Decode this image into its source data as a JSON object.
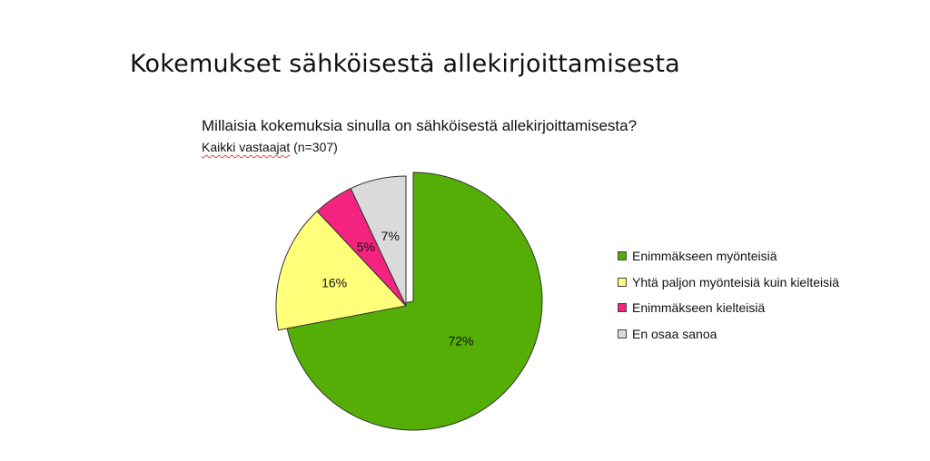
{
  "slide": {
    "title": "Kokemukset sähköisestä allekirjoittamisesta"
  },
  "chart_data": {
    "type": "pie",
    "title": "Millaisia kokemuksia sinulla on sähköisestä allekirjoittamisesta?",
    "subtitle_part1": "Kaikki vastaajat",
    "subtitle_part2": " (n=307)",
    "start_angle_deg": 0,
    "direction": "clockwise",
    "exploded": true,
    "legend_position": "right",
    "slices": [
      {
        "label": "Enimmäkseen myönteisiä",
        "value": 72,
        "display": "72%",
        "color": "#55ae06"
      },
      {
        "label": "Yhtä paljon myönteisiä kuin kielteisiä",
        "value": 16,
        "display": "16%",
        "color": "#ffff7a"
      },
      {
        "label": "Enimmäkseen kielteisiä",
        "value": 5,
        "display": "5%",
        "color": "#f3237f"
      },
      {
        "label": "En osaa sanoa",
        "value": 7,
        "display": "7%",
        "color": "#dadada"
      }
    ]
  }
}
